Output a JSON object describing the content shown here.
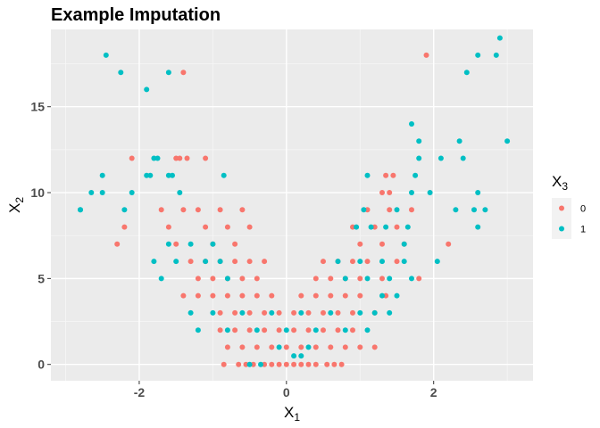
{
  "chart_data": {
    "type": "scatter",
    "title": "Example Imputation",
    "xlabel": {
      "base": "X",
      "sub": "1"
    },
    "ylabel": {
      "base": "X",
      "sub": "2"
    },
    "xlim": [
      -3.2,
      3.35
    ],
    "ylim": [
      -0.95,
      19.5
    ],
    "xticks": [
      -2,
      0,
      2
    ],
    "xtick_labels": [
      "-2",
      "0",
      "2"
    ],
    "yticks": [
      0,
      5,
      10,
      15
    ],
    "ytick_labels": [
      "0",
      "5",
      "10",
      "15"
    ],
    "grid": true,
    "legend": {
      "title": {
        "base": "X",
        "sub": "3"
      },
      "position": "right",
      "entries": [
        {
          "label": "0",
          "color": "#F8766D"
        },
        {
          "label": "1",
          "color": "#00BFC4"
        }
      ]
    },
    "series": [
      {
        "name": "0",
        "color": "#F8766D",
        "points": [
          [
            -2.2,
            8
          ],
          [
            -2.3,
            7
          ],
          [
            -2.1,
            12
          ],
          [
            -1.5,
            12
          ],
          [
            -1.45,
            12
          ],
          [
            -1.35,
            12
          ],
          [
            -1.1,
            12
          ],
          [
            -1.4,
            17
          ],
          [
            -1.7,
            9
          ],
          [
            -1.6,
            8
          ],
          [
            -1.5,
            7
          ],
          [
            -1.4,
            9
          ],
          [
            -1.2,
            9
          ],
          [
            -1.1,
            8
          ],
          [
            -1.0,
            7
          ],
          [
            -0.9,
            9
          ],
          [
            -0.8,
            8
          ],
          [
            -0.7,
            7
          ],
          [
            -0.6,
            9
          ],
          [
            -0.5,
            8
          ],
          [
            -1.3,
            6
          ],
          [
            -1.2,
            5
          ],
          [
            -1.1,
            6
          ],
          [
            -1.0,
            5
          ],
          [
            -0.9,
            6
          ],
          [
            -0.8,
            5
          ],
          [
            -0.7,
            6
          ],
          [
            -0.6,
            5
          ],
          [
            -0.5,
            6
          ],
          [
            -0.4,
            5
          ],
          [
            -0.3,
            6
          ],
          [
            -1.4,
            4
          ],
          [
            -1.2,
            4
          ],
          [
            -1.0,
            4
          ],
          [
            -0.9,
            3
          ],
          [
            -0.8,
            4
          ],
          [
            -0.7,
            3
          ],
          [
            -0.6,
            4
          ],
          [
            -0.5,
            3
          ],
          [
            -0.4,
            4
          ],
          [
            -0.3,
            3
          ],
          [
            -0.2,
            4
          ],
          [
            -0.1,
            3
          ],
          [
            -0.9,
            2
          ],
          [
            -0.8,
            1
          ],
          [
            -0.7,
            2
          ],
          [
            -0.6,
            1
          ],
          [
            -0.5,
            2
          ],
          [
            -0.4,
            1
          ],
          [
            -0.3,
            2
          ],
          [
            -0.2,
            1
          ],
          [
            -0.1,
            2
          ],
          [
            0.0,
            1
          ],
          [
            0.1,
            2
          ],
          [
            0.2,
            1
          ],
          [
            0.3,
            2
          ],
          [
            0.4,
            1
          ],
          [
            0.5,
            2
          ],
          [
            0.6,
            1
          ],
          [
            0.7,
            2
          ],
          [
            0.8,
            1
          ],
          [
            0.9,
            2
          ],
          [
            1.0,
            1
          ],
          [
            1.2,
            1
          ],
          [
            -0.85,
            0
          ],
          [
            -0.65,
            0
          ],
          [
            -0.55,
            0
          ],
          [
            -0.45,
            0
          ],
          [
            -0.3,
            0
          ],
          [
            -0.2,
            0
          ],
          [
            -0.1,
            0
          ],
          [
            0.0,
            0
          ],
          [
            0.1,
            0
          ],
          [
            0.2,
            0
          ],
          [
            0.3,
            0
          ],
          [
            0.4,
            0
          ],
          [
            0.55,
            0
          ],
          [
            0.65,
            0
          ],
          [
            0.75,
            0
          ],
          [
            0.1,
            3
          ],
          [
            0.2,
            4
          ],
          [
            0.3,
            3
          ],
          [
            0.4,
            4
          ],
          [
            0.5,
            3
          ],
          [
            0.6,
            4
          ],
          [
            0.7,
            3
          ],
          [
            0.8,
            4
          ],
          [
            0.9,
            3
          ],
          [
            1.0,
            4
          ],
          [
            1.2,
            3
          ],
          [
            1.35,
            4
          ],
          [
            0.4,
            5
          ],
          [
            0.5,
            6
          ],
          [
            0.6,
            5
          ],
          [
            0.7,
            6
          ],
          [
            0.8,
            5
          ],
          [
            0.9,
            6
          ],
          [
            1.0,
            5
          ],
          [
            1.1,
            6
          ],
          [
            1.3,
            5
          ],
          [
            1.5,
            6
          ],
          [
            1.8,
            5
          ],
          [
            0.9,
            8
          ],
          [
            1.0,
            7
          ],
          [
            1.1,
            9
          ],
          [
            1.2,
            8
          ],
          [
            1.3,
            7
          ],
          [
            1.4,
            9
          ],
          [
            1.5,
            8
          ],
          [
            1.6,
            7
          ],
          [
            1.7,
            9
          ],
          [
            1.3,
            10
          ],
          [
            1.35,
            11
          ],
          [
            1.4,
            10
          ],
          [
            1.45,
            11
          ],
          [
            1.9,
            18
          ],
          [
            2.2,
            7
          ]
        ]
      },
      {
        "name": "1",
        "color": "#00BFC4",
        "points": [
          [
            -2.45,
            18
          ],
          [
            -2.25,
            17
          ],
          [
            -1.9,
            16
          ],
          [
            -1.6,
            17
          ],
          [
            -2.8,
            9
          ],
          [
            -2.8,
            9
          ],
          [
            -2.65,
            10
          ],
          [
            -2.5,
            10
          ],
          [
            -2.5,
            11
          ],
          [
            -2.2,
            9
          ],
          [
            -2.1,
            10
          ],
          [
            -1.9,
            11
          ],
          [
            -1.85,
            11
          ],
          [
            -1.8,
            12
          ],
          [
            -1.75,
            12
          ],
          [
            -1.6,
            11
          ],
          [
            -1.55,
            11
          ],
          [
            -1.45,
            10
          ],
          [
            -0.85,
            11
          ],
          [
            -1.8,
            6
          ],
          [
            -1.7,
            5
          ],
          [
            -1.6,
            7
          ],
          [
            -1.5,
            6
          ],
          [
            -1.3,
            7
          ],
          [
            -1.1,
            6
          ],
          [
            -1.0,
            7
          ],
          [
            -0.9,
            6
          ],
          [
            -0.8,
            5
          ],
          [
            -1.3,
            3
          ],
          [
            -1.2,
            2
          ],
          [
            -1.0,
            3
          ],
          [
            -0.8,
            2
          ],
          [
            -0.6,
            3
          ],
          [
            -0.4,
            2
          ],
          [
            -0.2,
            3
          ],
          [
            -0.1,
            1
          ],
          [
            0.0,
            2
          ],
          [
            0.2,
            3
          ],
          [
            -0.5,
            0
          ],
          [
            -0.35,
            0
          ],
          [
            0.1,
            0.5
          ],
          [
            0.2,
            0.5
          ],
          [
            0.3,
            1
          ],
          [
            0.4,
            2
          ],
          [
            0.6,
            3
          ],
          [
            0.8,
            2
          ],
          [
            1.0,
            3
          ],
          [
            1.1,
            2
          ],
          [
            1.2,
            3
          ],
          [
            1.3,
            4
          ],
          [
            1.4,
            3
          ],
          [
            1.5,
            4
          ],
          [
            0.7,
            6
          ],
          [
            0.8,
            5
          ],
          [
            1.0,
            6
          ],
          [
            1.1,
            5
          ],
          [
            1.3,
            6
          ],
          [
            1.4,
            5
          ],
          [
            1.6,
            6
          ],
          [
            1.7,
            5
          ],
          [
            0.95,
            8
          ],
          [
            1.05,
            9
          ],
          [
            1.15,
            8
          ],
          [
            1.35,
            8
          ],
          [
            1.5,
            9
          ],
          [
            1.65,
            8
          ],
          [
            1.6,
            7
          ],
          [
            1.7,
            10
          ],
          [
            1.75,
            11
          ],
          [
            1.8,
            12
          ],
          [
            1.95,
            10
          ],
          [
            1.1,
            11
          ],
          [
            1.7,
            14
          ],
          [
            1.8,
            13
          ],
          [
            2.1,
            12
          ],
          [
            2.3,
            9
          ],
          [
            2.35,
            13
          ],
          [
            2.4,
            12
          ],
          [
            2.6,
            10
          ],
          [
            2.55,
            9
          ],
          [
            2.6,
            8
          ],
          [
            2.7,
            9
          ],
          [
            2.45,
            17
          ],
          [
            2.6,
            18
          ],
          [
            2.85,
            18
          ],
          [
            2.9,
            19
          ],
          [
            3.0,
            13
          ],
          [
            2.05,
            6
          ]
        ]
      }
    ]
  }
}
